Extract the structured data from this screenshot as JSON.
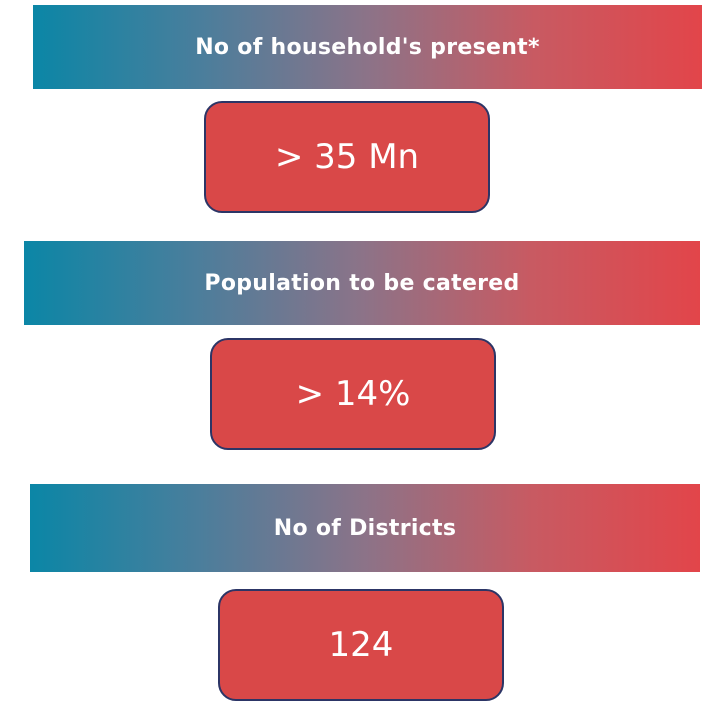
{
  "items": [
    {
      "title": "No of household's present*",
      "value": "> 35 Mn"
    },
    {
      "title": "Population to be catered",
      "value": "> 14%"
    },
    {
      "title": "No of Districts",
      "value": "124"
    }
  ]
}
